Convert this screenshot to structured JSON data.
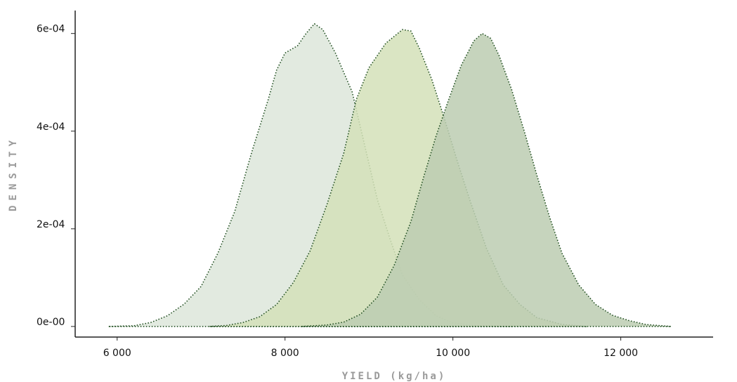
{
  "chart_data": {
    "type": "area",
    "title": "",
    "xlabel": "YIELD (kg/ha)",
    "ylabel": "DENSITY",
    "xlim": [
      5500,
      13100
    ],
    "ylim": [
      -2.17e-05,
      0.000647
    ],
    "x_ticks": [
      6000,
      8000,
      10000,
      12000
    ],
    "x_tick_labels": [
      "6 000",
      "8 000",
      "10 000",
      "12 000"
    ],
    "y_ticks": [
      0,
      0.0002,
      0.0004,
      0.0006
    ],
    "y_tick_labels": [
      "0e-00",
      "2e-04",
      "4e-04",
      "6e-04"
    ],
    "grid": false,
    "legend": "none",
    "series": [
      {
        "fill": "#dde6da",
        "line": "#1f4d1f",
        "points": [
          [
            5900,
            0
          ],
          [
            6200,
            1.5e-06
          ],
          [
            6400,
            8e-06
          ],
          [
            6600,
            2.2e-05
          ],
          [
            6800,
            4.6e-05
          ],
          [
            7000,
            8.2e-05
          ],
          [
            7200,
            0.00015
          ],
          [
            7400,
            0.000235
          ],
          [
            7600,
            0.000355
          ],
          [
            7800,
            0.000465
          ],
          [
            7900,
            0.000525
          ],
          [
            8000,
            0.00056
          ],
          [
            8150,
            0.000575
          ],
          [
            8250,
            0.0006
          ],
          [
            8350,
            0.00062
          ],
          [
            8450,
            0.000608
          ],
          [
            8600,
            0.00056
          ],
          [
            8800,
            0.00048
          ],
          [
            8950,
            0.00037
          ],
          [
            9100,
            0.00026
          ],
          [
            9250,
            0.00018
          ],
          [
            9400,
            0.000105
          ],
          [
            9600,
            5.5e-05
          ],
          [
            9800,
            2.2e-05
          ],
          [
            10000,
            7e-06
          ],
          [
            10300,
            1.5e-06
          ],
          [
            10700,
            0
          ]
        ]
      },
      {
        "fill": "#d3e0b8",
        "line": "#1f4d1f",
        "points": [
          [
            7100,
            0
          ],
          [
            7300,
            2e-06
          ],
          [
            7500,
            8e-06
          ],
          [
            7700,
            2e-05
          ],
          [
            7900,
            4.5e-05
          ],
          [
            8100,
            9e-05
          ],
          [
            8300,
            0.000155
          ],
          [
            8500,
            0.00025
          ],
          [
            8700,
            0.000355
          ],
          [
            8850,
            0.000465
          ],
          [
            9000,
            0.00053
          ],
          [
            9200,
            0.00058
          ],
          [
            9400,
            0.000608
          ],
          [
            9500,
            0.000605
          ],
          [
            9600,
            0.00057
          ],
          [
            9750,
            0.000505
          ],
          [
            9900,
            0.000425
          ],
          [
            10050,
            0.00034
          ],
          [
            10200,
            0.00026
          ],
          [
            10400,
            0.00016
          ],
          [
            10600,
            8.5e-05
          ],
          [
            10800,
            4.5e-05
          ],
          [
            11000,
            1.8e-05
          ],
          [
            11300,
            4e-06
          ],
          [
            11600,
            0
          ]
        ]
      },
      {
        "fill": "#bccdb2",
        "line": "#1f4d1f",
        "points": [
          [
            8200,
            0
          ],
          [
            8500,
            3e-06
          ],
          [
            8700,
            9e-06
          ],
          [
            8900,
            2.5e-05
          ],
          [
            9100,
            6e-05
          ],
          [
            9300,
            0.000125
          ],
          [
            9500,
            0.000215
          ],
          [
            9650,
            0.000305
          ],
          [
            9800,
            0.00039
          ],
          [
            9950,
            0.000465
          ],
          [
            10100,
            0.000535
          ],
          [
            10250,
            0.000585
          ],
          [
            10350,
            0.0006
          ],
          [
            10450,
            0.00059
          ],
          [
            10550,
            0.000555
          ],
          [
            10700,
            0.000485
          ],
          [
            10850,
            0.0004
          ],
          [
            11000,
            0.00031
          ],
          [
            11150,
            0.000225
          ],
          [
            11300,
            0.00015
          ],
          [
            11500,
            8.5e-05
          ],
          [
            11700,
            4.5e-05
          ],
          [
            11900,
            2.3e-05
          ],
          [
            12100,
            1.2e-05
          ],
          [
            12300,
            4e-06
          ],
          [
            12600,
            0
          ]
        ]
      }
    ]
  }
}
